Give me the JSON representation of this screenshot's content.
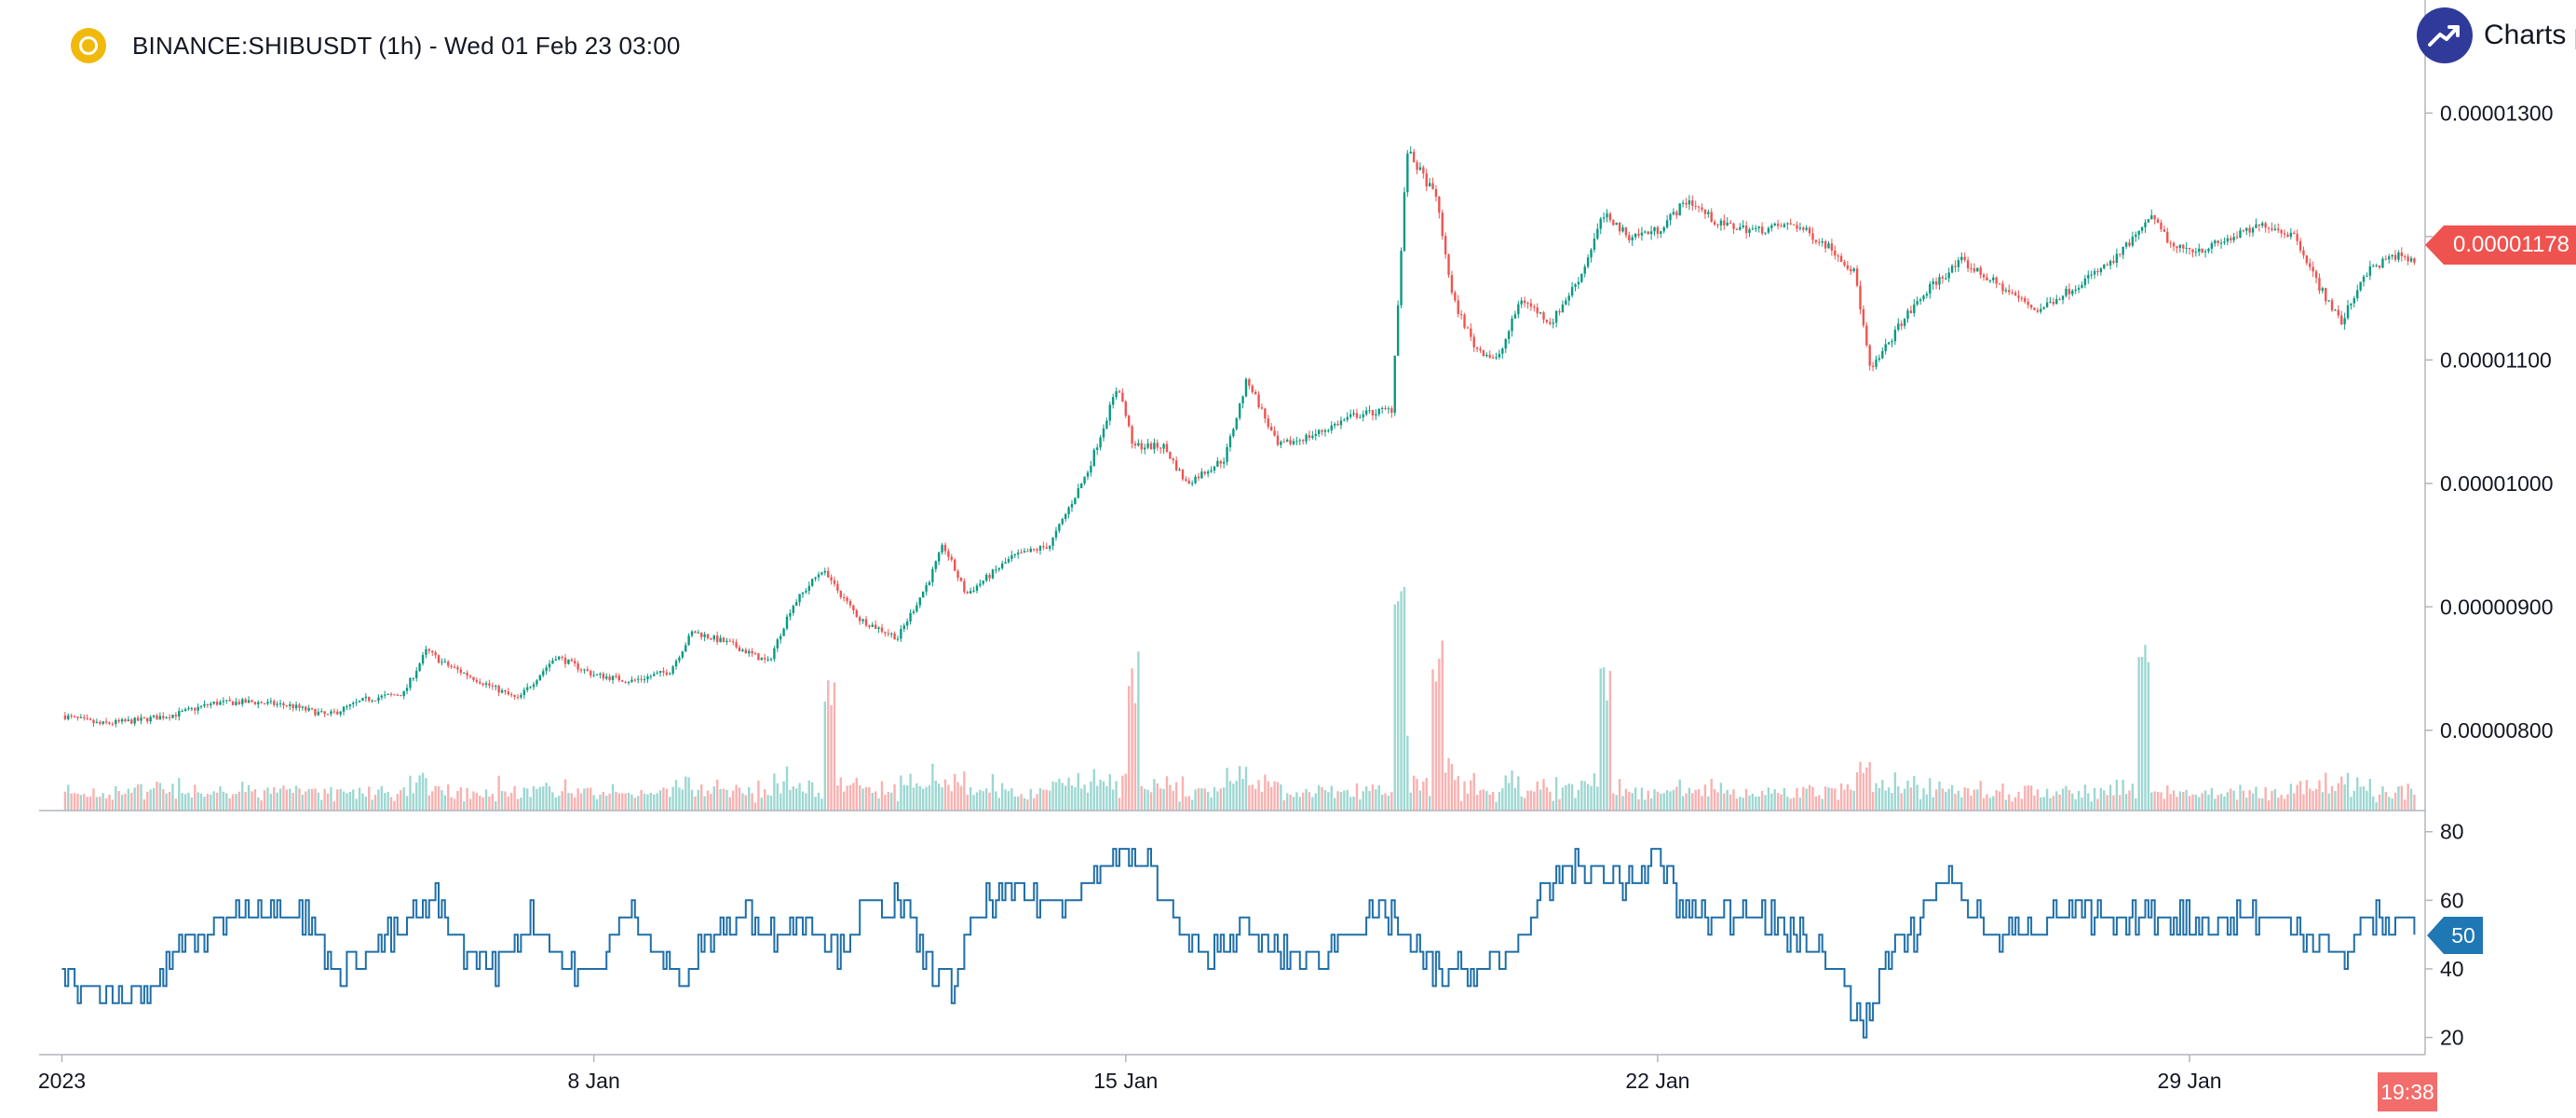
{
  "header": {
    "symbol_title": "BINANCE:SHIBUSDT (1h) - Wed 01 Feb 23 03:00",
    "brand_text": "Charts p"
  },
  "colors": {
    "up": "#26a69a",
    "up_candle": "#089981",
    "down": "#ef5350",
    "rsi_line": "#1f6fa8",
    "axis": "#b2b5be",
    "brand": "#2f3a9a",
    "coin": "#f0b90b"
  },
  "labels": {
    "last_price": "0.00001178",
    "rsi_last": "50",
    "time_remaining": "19:38"
  },
  "chart_data": [
    {
      "type": "candlestick",
      "title": "BINANCE:SHIBUSDT (1h) - Wed 01 Feb 23 03:00",
      "x_tick_labels": [
        "2023",
        "8 Jan",
        "15 Jan",
        "22 Jan",
        "29 Jan"
      ],
      "y_tick_labels": [
        "0.00000800",
        "0.00000900",
        "0.00001000",
        "0.00001100",
        "0.00001200",
        "0.00001300"
      ],
      "y_ticks": [
        8e-06,
        9e-06,
        1e-05,
        1.1e-05,
        1.2e-05,
        1.3e-05
      ],
      "ylim": [
        7.35e-06,
        1.335e-05
      ],
      "xlim_days": [
        0.7,
        32.1
      ],
      "last_price": 1.178e-05,
      "close_anchors": [
        [
          1.0,
          8.12e-06
        ],
        [
          1.5,
          8.05e-06
        ],
        [
          2.0,
          8.08e-06
        ],
        [
          2.5,
          8.13e-06
        ],
        [
          3.0,
          8.22e-06
        ],
        [
          3.5,
          8.23e-06
        ],
        [
          4.0,
          8.2e-06
        ],
        [
          4.5,
          8.12e-06
        ],
        [
          5.0,
          8.25e-06
        ],
        [
          5.5,
          8.3e-06
        ],
        [
          5.8,
          8.65e-06
        ],
        [
          6.0,
          8.55e-06
        ],
        [
          6.5,
          8.4e-06
        ],
        [
          7.0,
          8.25e-06
        ],
        [
          7.5,
          8.6e-06
        ],
        [
          8.0,
          8.45e-06
        ],
        [
          8.5,
          8.4e-06
        ],
        [
          9.0,
          8.48e-06
        ],
        [
          9.3,
          8.8e-06
        ],
        [
          9.8,
          8.7e-06
        ],
        [
          10.3,
          8.55e-06
        ],
        [
          10.6,
          9e-06
        ],
        [
          11.0,
          9.3e-06
        ],
        [
          11.5,
          8.9e-06
        ],
        [
          12.0,
          8.75e-06
        ],
        [
          12.4,
          9.2e-06
        ],
        [
          12.6,
          9.5e-06
        ],
        [
          12.9,
          9.1e-06
        ],
        [
          13.5,
          9.4e-06
        ],
        [
          14.0,
          9.5e-06
        ],
        [
          14.5,
          1.01e-05
        ],
        [
          14.9,
          1.08e-05
        ],
        [
          15.1,
          1.03e-05
        ],
        [
          15.5,
          1.03e-05
        ],
        [
          15.8,
          1e-05
        ],
        [
          16.3,
          1.02e-05
        ],
        [
          16.6,
          1.085e-05
        ],
        [
          17.0,
          1.03e-05
        ],
        [
          17.5,
          1.04e-05
        ],
        [
          18.0,
          1.055e-05
        ],
        [
          18.5,
          1.06e-05
        ],
        [
          18.7,
          1.27e-05
        ],
        [
          19.1,
          1.23e-05
        ],
        [
          19.3,
          1.15e-05
        ],
        [
          19.6,
          1.11e-05
        ],
        [
          19.9,
          1.1e-05
        ],
        [
          20.2,
          1.15e-05
        ],
        [
          20.6,
          1.13e-05
        ],
        [
          21.0,
          1.17e-05
        ],
        [
          21.3,
          1.22e-05
        ],
        [
          21.6,
          1.2e-05
        ],
        [
          22.0,
          1.205e-05
        ],
        [
          22.4,
          1.23e-05
        ],
        [
          22.8,
          1.21e-05
        ],
        [
          23.3,
          1.205e-05
        ],
        [
          23.8,
          1.21e-05
        ],
        [
          24.3,
          1.19e-05
        ],
        [
          24.6,
          1.17e-05
        ],
        [
          24.8,
          1.09e-05
        ],
        [
          25.2,
          1.13e-05
        ],
        [
          25.6,
          1.16e-05
        ],
        [
          26.0,
          1.18e-05
        ],
        [
          26.5,
          1.16e-05
        ],
        [
          27.0,
          1.14e-05
        ],
        [
          27.5,
          1.16e-05
        ],
        [
          28.0,
          1.18e-05
        ],
        [
          28.5,
          1.215e-05
        ],
        [
          28.8,
          1.19e-05
        ],
        [
          29.2,
          1.19e-05
        ],
        [
          29.6,
          1.2e-05
        ],
        [
          30.0,
          1.21e-05
        ],
        [
          30.4,
          1.2e-05
        ],
        [
          30.7,
          1.16e-05
        ],
        [
          31.0,
          1.13e-05
        ],
        [
          31.3,
          1.17e-05
        ],
        [
          31.7,
          1.185e-05
        ],
        [
          32.0,
          1.178e-05
        ]
      ],
      "volume_spikes_days": [
        18.6,
        19.1,
        11.1,
        15.1,
        21.3,
        28.4
      ],
      "grid": false
    },
    {
      "type": "line",
      "name": "RSI",
      "y_tick_labels": [
        "20",
        "40",
        "60",
        "80"
      ],
      "y_ticks": [
        20,
        40,
        60,
        80
      ],
      "ylim": [
        15,
        84
      ],
      "last_value": 50,
      "anchors": [
        [
          1.0,
          40
        ],
        [
          1.4,
          32
        ],
        [
          1.8,
          30
        ],
        [
          2.2,
          35
        ],
        [
          2.5,
          45
        ],
        [
          2.9,
          50
        ],
        [
          3.3,
          57
        ],
        [
          3.6,
          58
        ],
        [
          3.9,
          60
        ],
        [
          4.2,
          55
        ],
        [
          4.6,
          40
        ],
        [
          5.0,
          45
        ],
        [
          5.5,
          52
        ],
        [
          5.9,
          60
        ],
        [
          6.3,
          45
        ],
        [
          6.7,
          40
        ],
        [
          7.2,
          55
        ],
        [
          7.6,
          40
        ],
        [
          8.0,
          38
        ],
        [
          8.5,
          58
        ],
        [
          8.9,
          42
        ],
        [
          9.2,
          35
        ],
        [
          9.5,
          50
        ],
        [
          10.0,
          55
        ],
        [
          10.4,
          50
        ],
        [
          10.8,
          56
        ],
        [
          11.2,
          45
        ],
        [
          11.6,
          58
        ],
        [
          12.0,
          60
        ],
        [
          12.3,
          45
        ],
        [
          12.7,
          35
        ],
        [
          13.1,
          58
        ],
        [
          13.6,
          62
        ],
        [
          14.0,
          60
        ],
        [
          14.5,
          65
        ],
        [
          14.9,
          75
        ],
        [
          15.3,
          70
        ],
        [
          15.6,
          55
        ],
        [
          16.0,
          42
        ],
        [
          16.5,
          52
        ],
        [
          17.0,
          45
        ],
        [
          17.5,
          42
        ],
        [
          18.0,
          52
        ],
        [
          18.5,
          55
        ],
        [
          18.8,
          45
        ],
        [
          19.2,
          38
        ],
        [
          19.6,
          40
        ],
        [
          20.0,
          42
        ],
        [
          20.4,
          58
        ],
        [
          20.8,
          70
        ],
        [
          21.2,
          68
        ],
        [
          21.6,
          65
        ],
        [
          22.0,
          72
        ],
        [
          22.3,
          58
        ],
        [
          22.7,
          55
        ],
        [
          23.2,
          58
        ],
        [
          23.6,
          52
        ],
        [
          24.0,
          48
        ],
        [
          24.4,
          38
        ],
        [
          24.7,
          22
        ],
        [
          25.0,
          42
        ],
        [
          25.4,
          52
        ],
        [
          25.8,
          68
        ],
        [
          26.1,
          58
        ],
        [
          26.5,
          48
        ],
        [
          27.0,
          55
        ],
        [
          27.5,
          57
        ],
        [
          28.0,
          52
        ],
        [
          28.4,
          55
        ],
        [
          28.8,
          55
        ],
        [
          29.2,
          52
        ],
        [
          29.6,
          55
        ],
        [
          30.0,
          55
        ],
        [
          30.4,
          52
        ],
        [
          30.7,
          48
        ],
        [
          31.0,
          42
        ],
        [
          31.3,
          55
        ],
        [
          31.6,
          52
        ],
        [
          31.9,
          55
        ],
        [
          32.0,
          50
        ]
      ],
      "grid": false
    }
  ]
}
